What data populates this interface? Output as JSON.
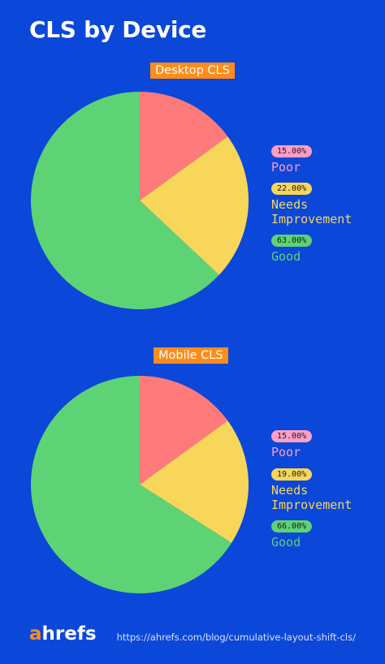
{
  "header": {
    "title": "CLS by Device"
  },
  "chart_data": [
    {
      "type": "pie",
      "title": "Desktop CLS",
      "categories": [
        "Poor",
        "Needs Improvement",
        "Good"
      ],
      "values": [
        15.0,
        22.0,
        63.0
      ],
      "value_labels": [
        "15.00%",
        "22.00%",
        "63.00%"
      ],
      "colors": [
        "#ff7a7a",
        "#f7d65a",
        "#5dd375"
      ],
      "label_colors": [
        "#ff9ec7",
        "#f7d65a",
        "#5dd375"
      ],
      "legend": "right"
    },
    {
      "type": "pie",
      "title": "Mobile CLS",
      "categories": [
        "Poor",
        "Needs Improvement",
        "Good"
      ],
      "values": [
        15.0,
        19.0,
        66.0
      ],
      "value_labels": [
        "15.00%",
        "19.00%",
        "66.00%"
      ],
      "colors": [
        "#ff7a7a",
        "#f7d65a",
        "#5dd375"
      ],
      "label_colors": [
        "#ff9ec7",
        "#f7d65a",
        "#5dd375"
      ],
      "legend": "right"
    }
  ],
  "footer": {
    "brand_a": "a",
    "brand_rest": "hrefs",
    "url": "https://ahrefs.com/blog/cumulative-layout-shift-cls/"
  }
}
